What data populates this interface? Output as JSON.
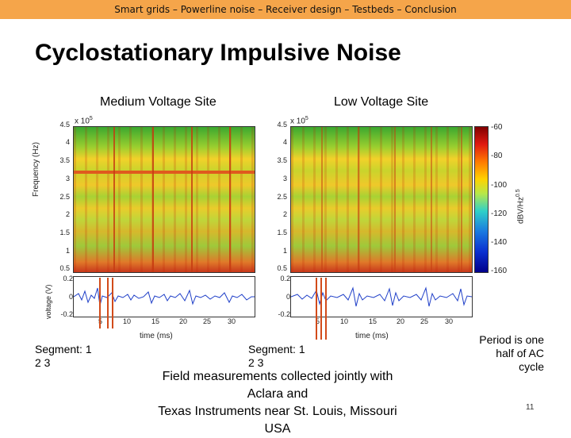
{
  "header": {
    "breadcrumb": "Smart grids – Powerline noise – Receiver design – Testbeds – Conclusion"
  },
  "slide": {
    "title": "Cyclostationary Impulsive Noise",
    "left_label": "Medium Voltage Site",
    "right_label": "Low Voltage Site",
    "page_number": "11"
  },
  "figure": {
    "exponent": "x 10",
    "exponent_sup_left": "5",
    "exponent_sup_right": "5",
    "y_ticks": [
      "4.5",
      "4",
      "3.5",
      "3",
      "2.5",
      "2",
      "1.5",
      "1",
      "0.5"
    ],
    "y_label": "Frequency (Hz)",
    "volt_ticks": [
      "0.2",
      "0",
      "-0.2"
    ],
    "volt_label": "voltage (V)",
    "time_ticks": [
      "5",
      "10",
      "15",
      "20",
      "25",
      "30"
    ],
    "time_label": "time (ms)",
    "colorbar_ticks": [
      "-60",
      "-80",
      "-100",
      "-120",
      "-140",
      "-160"
    ],
    "colorbar_label": "dBV/Hz",
    "colorbar_sup": "0.5"
  },
  "notes": {
    "left_segment_line1": "Segment:  1",
    "left_segment_line2": "2 3",
    "right_segment_line1": "Segment:  1",
    "right_segment_line2": "2 3",
    "period": "Period is one half of AC cycle",
    "measurement_line1": "Field measurements collected jointly with",
    "measurement_line2": "Aclara and",
    "measurement_line3": "Texas Instruments near St. Louis, Missouri",
    "measurement_line4": "USA"
  },
  "colors": {
    "header_bar": "#f5a54a",
    "signal": "#1f3fc8",
    "marker": "#d24b1a"
  }
}
